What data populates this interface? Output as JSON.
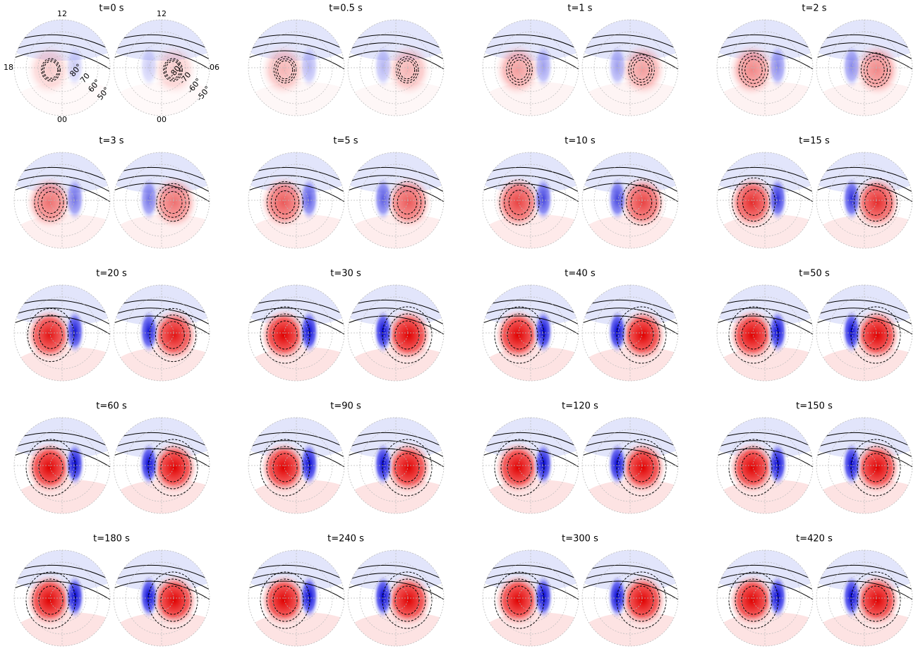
{
  "panels": [
    {
      "title": "t=0 s"
    },
    {
      "title": "t=0.5 s"
    },
    {
      "title": "t=1 s"
    },
    {
      "title": "t=2 s"
    },
    {
      "title": "t=3 s"
    },
    {
      "title": "t=5 s"
    },
    {
      "title": "t=10 s"
    },
    {
      "title": "t=15 s"
    },
    {
      "title": "t=20 s"
    },
    {
      "title": "t=30 s"
    },
    {
      "title": "t=40 s"
    },
    {
      "title": "t=50 s"
    },
    {
      "title": "t=60 s"
    },
    {
      "title": "t=90 s"
    },
    {
      "title": "t=120 s"
    },
    {
      "title": "t=150 s"
    },
    {
      "title": "t=180 s"
    },
    {
      "title": "t=240 s"
    },
    {
      "title": "t=300 s"
    },
    {
      "title": "t=420 s"
    }
  ],
  "labels": {
    "north": {
      "top": "12",
      "left": "18",
      "bottom": "00",
      "latitudes": [
        "80°",
        "70",
        "60°",
        "50°"
      ]
    },
    "south": {
      "top": "12",
      "right": "06",
      "bottom": "00",
      "latitudes": [
        "-80°",
        "-70",
        "-60°",
        "-50°"
      ]
    }
  }
}
